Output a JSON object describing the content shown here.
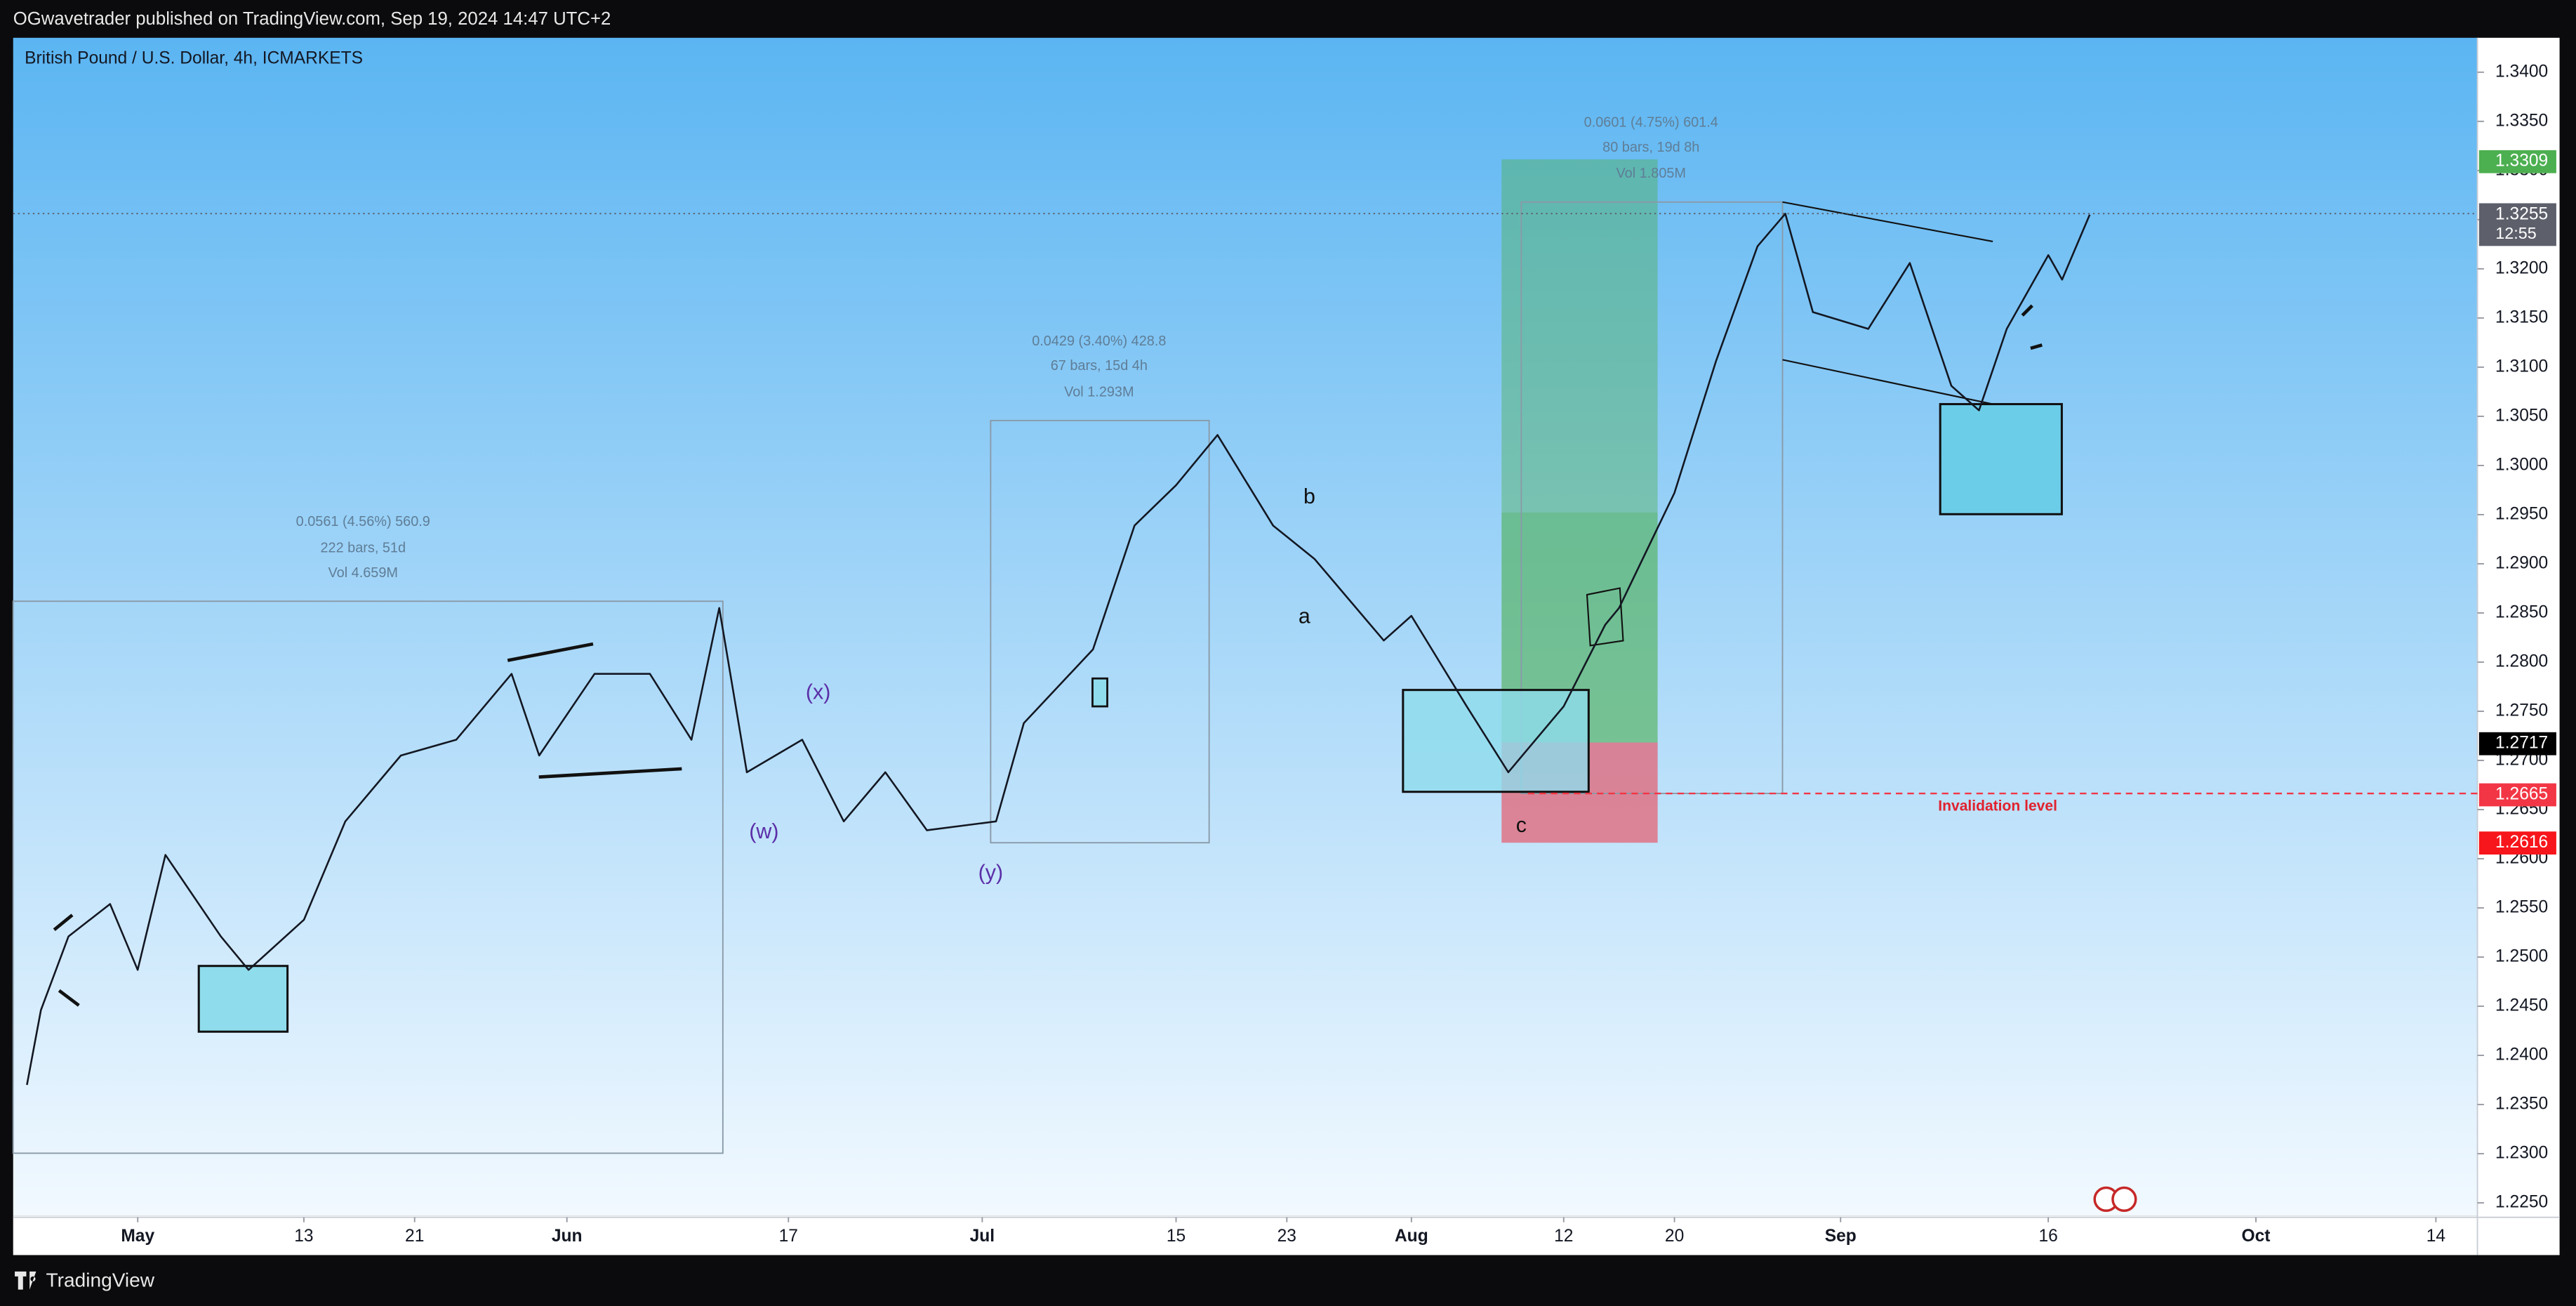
{
  "header": "OGwavetrader published on TradingView.com, Sep 19, 2024 14:47 UTC+2",
  "footer": "TradingView",
  "chart_data": {
    "type": "line",
    "title": "British Pound / U.S. Dollar, 4h, ICMARKETS",
    "color": "#131722",
    "x": [
      "04-23",
      "04-24",
      "04-26",
      "04-29",
      "05-01",
      "05-03",
      "05-07",
      "05-09",
      "05-13",
      "05-16",
      "05-20",
      "05-24",
      "05-28",
      "05-30",
      "06-03",
      "06-07",
      "06-10",
      "06-12",
      "06-14",
      "06-18",
      "06-21",
      "06-24",
      "06-27",
      "07-02",
      "07-04",
      "07-09",
      "07-12",
      "07-15",
      "07-18",
      "07-22",
      "07-25",
      "07-30",
      "08-01",
      "08-05",
      "08-08",
      "08-12",
      "08-15",
      "08-16",
      "08-20",
      "08-23",
      "08-26",
      "08-28",
      "08-30",
      "09-03",
      "09-06",
      "09-09",
      "09-11",
      "09-13",
      "09-16",
      "09-17",
      "09-19"
    ],
    "values": [
      1.237,
      1.2446,
      1.2521,
      1.2554,
      1.2487,
      1.2604,
      1.2521,
      1.2487,
      1.2538,
      1.2638,
      1.2705,
      1.2721,
      1.2788,
      1.2705,
      1.2788,
      1.2788,
      1.2721,
      1.2855,
      1.2688,
      1.2721,
      1.2638,
      1.2688,
      1.2629,
      1.2638,
      1.2738,
      1.2813,
      1.2939,
      1.298,
      1.3031,
      1.2939,
      1.2905,
      1.2822,
      1.2847,
      1.2755,
      1.2688,
      1.2755,
      1.2838,
      1.2855,
      1.2972,
      1.3106,
      1.3223,
      1.3256,
      1.3156,
      1.3139,
      1.3206,
      1.3081,
      1.3056,
      1.3139,
      1.3214,
      1.3189,
      1.3255
    ],
    "xlim": [
      "04-22",
      "10-17"
    ],
    "xticks": [
      {
        "value": "05-01",
        "label": "May"
      },
      {
        "value": "05-13",
        "label": "13"
      },
      {
        "value": "05-21",
        "label": "21"
      },
      {
        "value": "06-01",
        "label": "Jun"
      },
      {
        "value": "06-17",
        "label": "17"
      },
      {
        "value": "07-01",
        "label": "Jul"
      },
      {
        "value": "07-15",
        "label": "15"
      },
      {
        "value": "07-23",
        "label": "23"
      },
      {
        "value": "08-01",
        "label": "Aug"
      },
      {
        "value": "08-12",
        "label": "12"
      },
      {
        "value": "08-20",
        "label": "20"
      },
      {
        "value": "09-01",
        "label": "Sep"
      },
      {
        "value": "09-16",
        "label": "16"
      },
      {
        "value": "10-01",
        "label": "Oct"
      },
      {
        "value": "10-14",
        "label": "14"
      }
    ],
    "ylim": [
      1.2237,
      1.3435
    ],
    "yticks": [
      {
        "value": 1.225,
        "label": "1.2250"
      },
      {
        "value": 1.23,
        "label": "1.2300"
      },
      {
        "value": 1.235,
        "label": "1.2350"
      },
      {
        "value": 1.24,
        "label": "1.2400"
      },
      {
        "value": 1.245,
        "label": "1.2450"
      },
      {
        "value": 1.25,
        "label": "1.2500"
      },
      {
        "value": 1.255,
        "label": "1.2550"
      },
      {
        "value": 1.26,
        "label": "1.2600"
      },
      {
        "value": 1.265,
        "label": "1.2650"
      },
      {
        "value": 1.27,
        "label": "1.2700"
      },
      {
        "value": 1.275,
        "label": "1.2750"
      },
      {
        "value": 1.28,
        "label": "1.2800"
      },
      {
        "value": 1.285,
        "label": "1.2850"
      },
      {
        "value": 1.29,
        "label": "1.2900"
      },
      {
        "value": 1.295,
        "label": "1.2950"
      },
      {
        "value": 1.3,
        "label": "1.3000"
      },
      {
        "value": 1.305,
        "label": "1.3050"
      },
      {
        "value": 1.31,
        "label": "1.3100"
      },
      {
        "value": 1.315,
        "label": "1.3150"
      },
      {
        "value": 1.32,
        "label": "1.3200"
      },
      {
        "value": 1.325,
        "label": "1.3250"
      },
      {
        "value": 1.33,
        "label": "1.3300"
      },
      {
        "value": 1.335,
        "label": "1.3350"
      },
      {
        "value": 1.34,
        "label": "1.3400"
      }
    ],
    "price_marks": [
      {
        "value": 1.3309,
        "color": "#4caf50"
      },
      {
        "value": 1.3255,
        "color": "#5d606b",
        "countdown": "12:55"
      },
      {
        "value": 1.2717,
        "color": "#000000"
      },
      {
        "value": 1.2665,
        "color": "#f23645"
      },
      {
        "value": 1.2616,
        "color": "#f7161b"
      }
    ],
    "measurements": [
      [
        "0.0561 (4.56%) 560.9",
        "222 bars, 51d",
        "Vol 4.659M"
      ],
      [
        "0.0429 (3.40%) 428.8",
        "67 bars, 15d 4h",
        "Vol 1.293M"
      ],
      [
        "0.0601 (4.75%) 601.4",
        "80 bars, 19d 8h",
        "Vol 1.805M"
      ]
    ],
    "wave_labels": [
      "(x)",
      "(w)",
      "(y)",
      "a",
      "b",
      "c"
    ],
    "invalidation_label": "Invalidation level"
  }
}
